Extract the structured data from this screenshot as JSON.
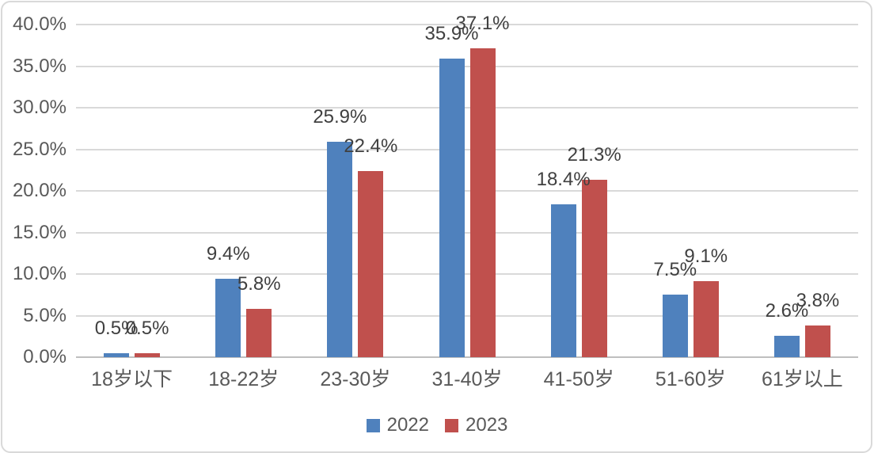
{
  "chart_data": {
    "type": "bar",
    "title": "",
    "xlabel": "",
    "ylabel": "",
    "categories": [
      "18岁以下",
      "18-22岁",
      "23-30岁",
      "31-40岁",
      "41-50岁",
      "51-60岁",
      "61岁以上"
    ],
    "series": [
      {
        "name": "2022",
        "color": "#4F81BD",
        "values": [
          0.5,
          9.4,
          25.9,
          35.9,
          18.4,
          7.5,
          2.6
        ],
        "data_labels": [
          "0.5%",
          "9.4%",
          "25.9%",
          "35.9%",
          "18.4%",
          "7.5%",
          "2.6%"
        ]
      },
      {
        "name": "2023",
        "color": "#C0504D",
        "values": [
          0.5,
          5.8,
          22.4,
          37.1,
          21.3,
          9.1,
          3.8
        ],
        "data_labels": [
          "0.5%",
          "5.8%",
          "22.4%",
          "37.1%",
          "21.3%",
          "9.1%",
          "3.8%"
        ]
      }
    ],
    "y_axis": {
      "min": 0,
      "max": 40,
      "step": 5,
      "ticks": [
        "0.0%",
        "5.0%",
        "10.0%",
        "15.0%",
        "20.0%",
        "25.0%",
        "30.0%",
        "35.0%",
        "40.0%"
      ]
    },
    "grid": true,
    "legend": {
      "position": "bottom",
      "entries": [
        "2022",
        "2023"
      ]
    },
    "style": {
      "background": "#FFFFFF",
      "border_color": "#D9D9D9",
      "grid_color": "#D9D9D9",
      "axis_color": "#BFBFBF",
      "tick_text_color": "#595959",
      "data_label_color": "#404040"
    }
  }
}
